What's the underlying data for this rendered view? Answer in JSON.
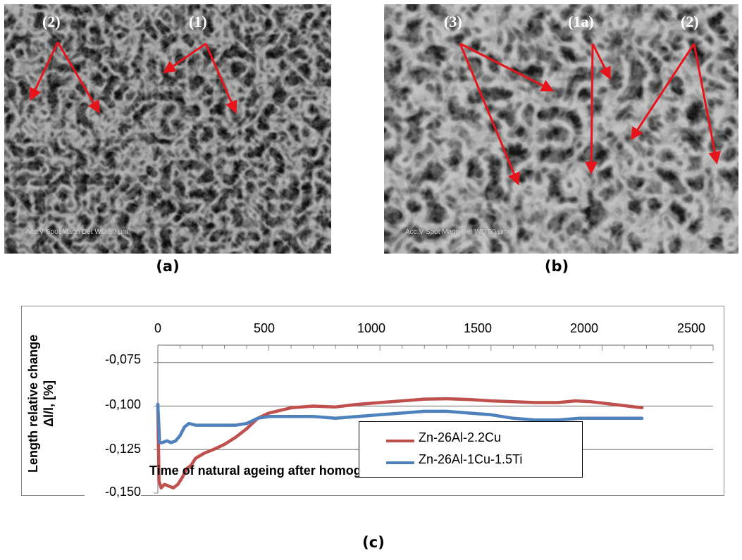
{
  "panels": {
    "a": {
      "caption": "(a)",
      "labels": [
        "(2)",
        "(1)"
      ],
      "scalebar_text": "Acc.V  Spot Magn   Det  WD         50 µm"
    },
    "b": {
      "caption": "(b)",
      "labels": [
        "(3)",
        "(1a)",
        "(2)"
      ],
      "scalebar_text": "Acc.V  Spot Magn   Det  WD         50 µm"
    },
    "c": {
      "caption": "(c)"
    }
  },
  "colors": {
    "series1": "#c0504d",
    "series2": "#4f81bd",
    "arrow": "#e8141c",
    "grid": "#868686"
  },
  "chart_data": {
    "type": "line",
    "xlabel": "Time of natural ageing after homogenization and  quenching, [days]",
    "ylabel": "Length relative change Δl/l, [%]",
    "x_ticks": [
      "0",
      "500",
      "1000",
      "1500",
      "2000",
      "2500"
    ],
    "y_ticks": [
      "-0,075",
      "-0,100",
      "-0,125",
      "-0,150"
    ],
    "xlim": [
      0,
      2500
    ],
    "ylim": [
      -0.15,
      -0.065
    ],
    "x_axis_position": "top",
    "grid": "horizontal",
    "legend_position": "bottom-center",
    "series": [
      {
        "name": "Zn-26Al-2.2Cu",
        "points": [
          [
            0,
            -0.099
          ],
          [
            5,
            -0.143
          ],
          [
            15,
            -0.147
          ],
          [
            30,
            -0.145
          ],
          [
            50,
            -0.146
          ],
          [
            70,
            -0.147
          ],
          [
            90,
            -0.145
          ],
          [
            110,
            -0.141
          ],
          [
            130,
            -0.136
          ],
          [
            150,
            -0.134
          ],
          [
            170,
            -0.13
          ],
          [
            210,
            -0.127
          ],
          [
            250,
            -0.125
          ],
          [
            300,
            -0.122
          ],
          [
            350,
            -0.118
          ],
          [
            400,
            -0.113
          ],
          [
            450,
            -0.107
          ],
          [
            500,
            -0.104
          ],
          [
            600,
            -0.101
          ],
          [
            700,
            -0.1
          ],
          [
            800,
            -0.1005
          ],
          [
            900,
            -0.099
          ],
          [
            1000,
            -0.098
          ],
          [
            1100,
            -0.097
          ],
          [
            1200,
            -0.096
          ],
          [
            1300,
            -0.0958
          ],
          [
            1400,
            -0.0962
          ],
          [
            1500,
            -0.097
          ],
          [
            1600,
            -0.0975
          ],
          [
            1700,
            -0.098
          ],
          [
            1800,
            -0.098
          ],
          [
            1880,
            -0.097
          ],
          [
            1950,
            -0.0975
          ],
          [
            2050,
            -0.099
          ],
          [
            2180,
            -0.101
          ]
        ]
      },
      {
        "name": "Zn-26Al-1Cu-1.5Ti",
        "points": [
          [
            0,
            -0.099
          ],
          [
            8,
            -0.121
          ],
          [
            20,
            -0.121
          ],
          [
            40,
            -0.12
          ],
          [
            60,
            -0.121
          ],
          [
            80,
            -0.12
          ],
          [
            100,
            -0.117
          ],
          [
            120,
            -0.112
          ],
          [
            140,
            -0.11
          ],
          [
            170,
            -0.111
          ],
          [
            250,
            -0.111
          ],
          [
            350,
            -0.111
          ],
          [
            400,
            -0.11
          ],
          [
            450,
            -0.107
          ],
          [
            500,
            -0.106
          ],
          [
            600,
            -0.106
          ],
          [
            700,
            -0.106
          ],
          [
            800,
            -0.107
          ],
          [
            900,
            -0.106
          ],
          [
            1000,
            -0.105
          ],
          [
            1100,
            -0.104
          ],
          [
            1200,
            -0.103
          ],
          [
            1300,
            -0.103
          ],
          [
            1400,
            -0.104
          ],
          [
            1500,
            -0.105
          ],
          [
            1600,
            -0.107
          ],
          [
            1700,
            -0.108
          ],
          [
            1800,
            -0.108
          ],
          [
            1900,
            -0.107
          ],
          [
            2000,
            -0.107
          ],
          [
            2180,
            -0.107
          ]
        ]
      }
    ]
  }
}
